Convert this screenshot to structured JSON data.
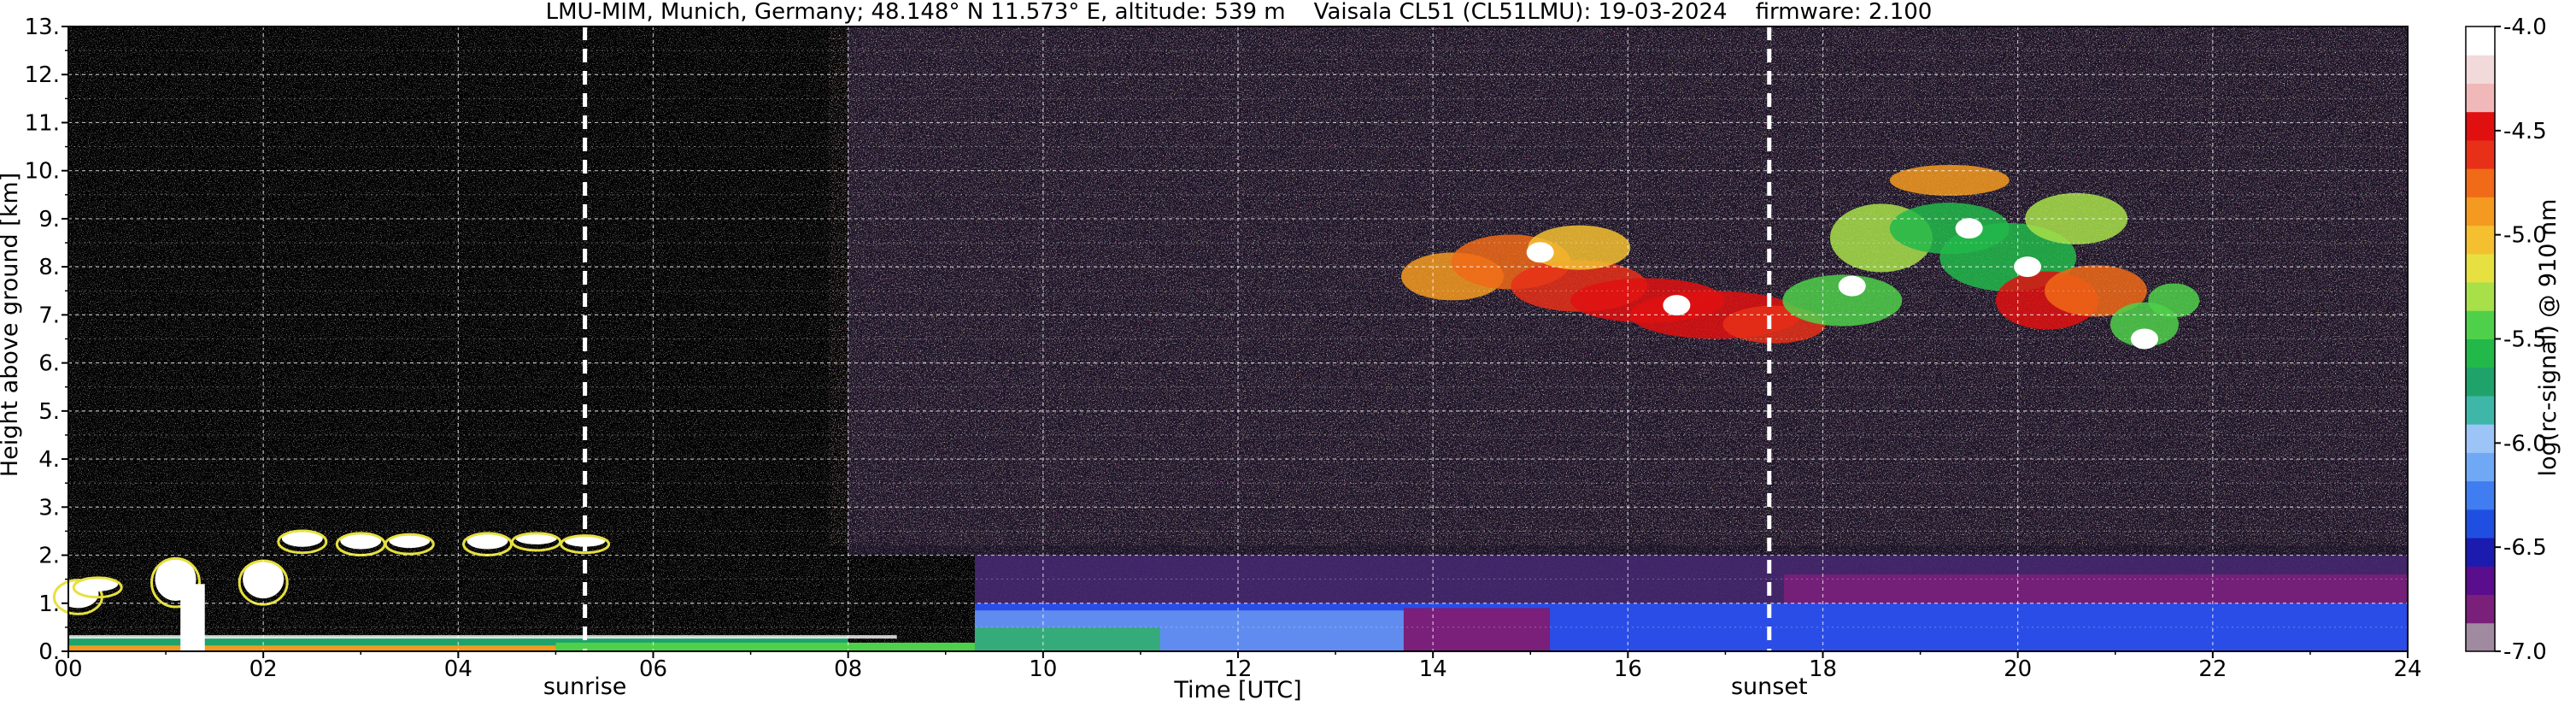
{
  "chart_data": {
    "type": "heatmap",
    "title": "LMU-MIM, Munich, Germany; 48.148° N 11.573° E, altitude: 539 m    Vaisala CL51 (CL51LMU): 19-03-2024    firmware: 2.100",
    "xlabel": "Time [UTC]",
    "ylabel": "Height above ground [km]",
    "xlim": [
      0,
      24
    ],
    "ylim": [
      0,
      13
    ],
    "x_ticks": [
      "00",
      "02",
      "04",
      "06",
      "08",
      "10",
      "12",
      "14",
      "16",
      "18",
      "20",
      "22",
      "24"
    ],
    "y_ticks": [
      "0.",
      "1.",
      "2.",
      "3.",
      "4.",
      "5.",
      "6.",
      "7.",
      "8.",
      "9.",
      "10.",
      "11.",
      "12.",
      "13."
    ],
    "grid": true,
    "colorbar": {
      "label": "log(rc-signal) @ 910 nm",
      "range": [
        -7.0,
        -4.0
      ],
      "ticks": [
        "-4.0",
        "-4.5",
        "-5.0",
        "-5.5",
        "-6.0",
        "-6.5",
        "-7.0"
      ],
      "colors": [
        "#a08aa0",
        "#7a1f7a",
        "#5a0d8c",
        "#1b1bb0",
        "#1f4fe0",
        "#3f7df0",
        "#6fa8f5",
        "#9cc4f7",
        "#3fb7a8",
        "#1fa36a",
        "#22b84a",
        "#4fd04a",
        "#a8e04a",
        "#e6e040",
        "#f5c030",
        "#f59a20",
        "#f06a18",
        "#e83018",
        "#e01010",
        "#f0b8b8",
        "#f2dada",
        "#ffffff"
      ]
    },
    "annotations": [
      {
        "label": "sunrise",
        "x": 5.3
      },
      {
        "label": "sunset",
        "x": 17.45
      }
    ],
    "features": [
      {
        "name": "near-surface aerosol layer",
        "x_start": 0,
        "x_end": 24,
        "top_km": 0.3
      },
      {
        "name": "boundary layer",
        "x_start": 9.3,
        "x_end": 24,
        "top_km": 1.0
      },
      {
        "name": "residual layer",
        "x_start": 9.3,
        "x_end": 24,
        "top_km": 2.0
      },
      {
        "name": "low cloud patches",
        "x_start": 0,
        "x_end": 5.6,
        "top_km": 2.5
      },
      {
        "name": "cirrus cloud",
        "x_start": 13.6,
        "x_end": 21.8,
        "base_km": 6.0,
        "top_km": 10.3
      }
    ]
  }
}
